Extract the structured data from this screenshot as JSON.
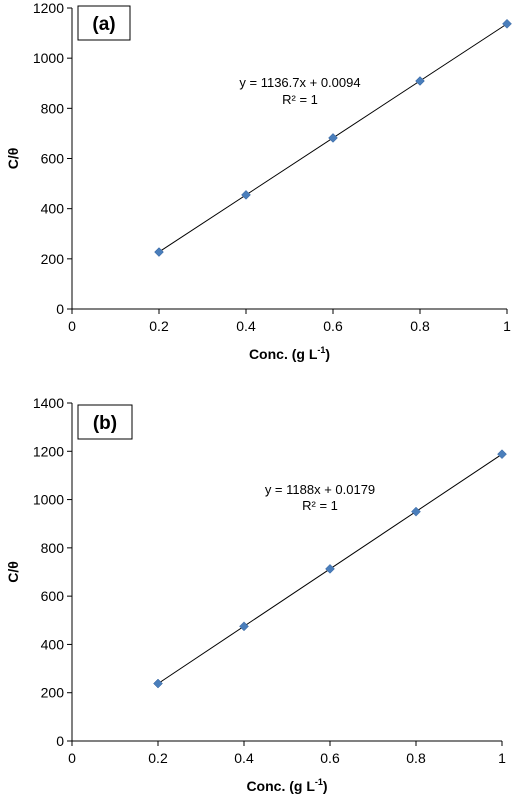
{
  "chart_data": [
    {
      "type": "scatter",
      "panel_label": "(a)",
      "x": [
        0.2,
        0.4,
        0.6,
        0.8,
        1.0
      ],
      "y": [
        227,
        455,
        682,
        909,
        1137
      ],
      "xlabel": "Conc. (g L",
      "xlabel_sup": "-1",
      "xlabel_end": ")",
      "ylabel": "C/θ",
      "xlim": [
        0,
        1
      ],
      "ylim": [
        0,
        1200
      ],
      "xticks": [
        0,
        0.2,
        0.4,
        0.6,
        0.8,
        1
      ],
      "xtick_labels": [
        "0",
        "0.2",
        "0.4",
        "0.6",
        "0.8",
        "1"
      ],
      "yticks": [
        0,
        200,
        400,
        600,
        800,
        1000,
        1200
      ],
      "ytick_labels": [
        "0",
        "200",
        "400",
        "600",
        "800",
        "1000",
        "1200"
      ],
      "trendline": {
        "slope": 1136.7,
        "intercept": 0.0094
      },
      "equation": "y = 1136.7x + 0.0094",
      "r_squared": "R² = 1",
      "grid": false,
      "marker_color": "#4a7ebb",
      "line_color": "#000000"
    },
    {
      "type": "scatter",
      "panel_label": "(b)",
      "x": [
        0.2,
        0.4,
        0.6,
        0.8,
        1.0
      ],
      "y": [
        238,
        475,
        713,
        950,
        1188
      ],
      "xlabel": "Conc. (g L",
      "xlabel_sup": "-1",
      "xlabel_end": ")",
      "ylabel": "C/θ",
      "xlim": [
        0,
        1
      ],
      "ylim": [
        0,
        1400
      ],
      "xticks": [
        0,
        0.2,
        0.4,
        0.6,
        0.8,
        1
      ],
      "xtick_labels": [
        "0",
        "0.2",
        "0.4",
        "0.6",
        "0.8",
        "1"
      ],
      "yticks": [
        0,
        200,
        400,
        600,
        800,
        1000,
        1200,
        1400
      ],
      "ytick_labels": [
        "0",
        "200",
        "400",
        "600",
        "800",
        "1000",
        "1200",
        "1400"
      ],
      "trendline": {
        "slope": 1188,
        "intercept": 0.0179
      },
      "equation": "y = 1188x + 0.0179",
      "r_squared": "R² = 1",
      "grid": false,
      "marker_color": "#4a7ebb",
      "line_color": "#000000"
    }
  ]
}
